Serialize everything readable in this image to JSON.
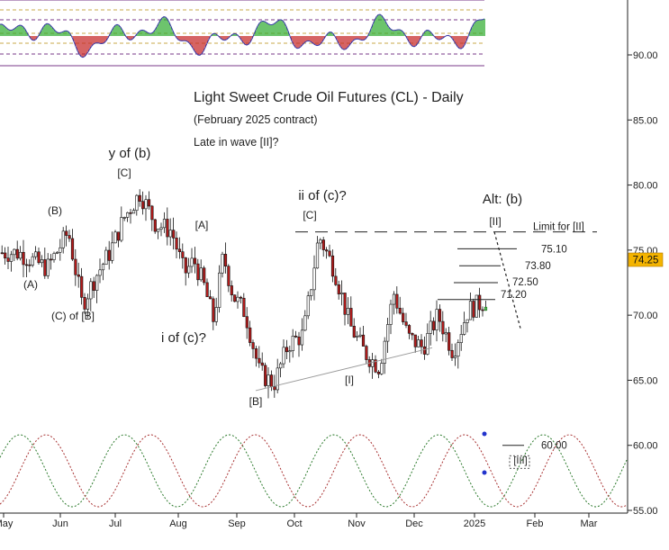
{
  "chart_data": {
    "type": "candlestick",
    "title": "Light Sweet Crude Oil Futures (CL) - Daily",
    "subtitle": "(February 2025 contract)",
    "note": "Late in wave [II]?",
    "ylim": [
      55,
      96
    ],
    "y_ticks": [
      "55.00",
      "60.00",
      "65.00",
      "70.00",
      "75.00",
      "80.00",
      "85.00",
      "90.00"
    ],
    "x_ticks": [
      "May",
      "Jun",
      "Jul",
      "Aug",
      "Sep",
      "Oct",
      "Nov",
      "Dec",
      "2025",
      "Feb",
      "Mar"
    ],
    "last_price": "74.25",
    "price_path": [
      [
        "May",
        74.8
      ],
      [
        "May",
        73.6
      ],
      [
        "Jun",
        76.4
      ],
      [
        "Jun",
        70.8
      ],
      [
        "Jun",
        73.0
      ],
      [
        "Jun",
        74.8
      ],
      [
        "Jul",
        77.5
      ],
      [
        "Jul",
        79.4
      ],
      [
        "Jul",
        77.0
      ],
      [
        "Jul",
        76.5
      ],
      [
        "Aug",
        73.2
      ],
      [
        "Aug",
        74.2
      ],
      [
        "Aug",
        72.3
      ],
      [
        "Aug",
        69.6
      ],
      [
        "Aug",
        74.6
      ],
      [
        "Aug",
        71.5
      ],
      [
        "Sep",
        70.2
      ],
      [
        "Sep",
        65.6
      ],
      [
        "Sep",
        64.7
      ],
      [
        "Sep",
        67.8
      ],
      [
        "Oct",
        68.5
      ],
      [
        "Oct",
        76.1
      ],
      [
        "Oct",
        73.5
      ],
      [
        "Oct",
        69.2
      ],
      [
        "Nov",
        67.1
      ],
      [
        "Nov",
        66.0
      ],
      [
        "Nov",
        71.7
      ],
      [
        "Nov",
        68.3
      ],
      [
        "Dec",
        67.5
      ],
      [
        "Dec",
        70.0
      ],
      [
        "Dec",
        67.2
      ],
      [
        "Dec",
        70.4
      ],
      [
        "2025",
        71.0
      ],
      [
        "2025",
        72.6
      ],
      [
        "2025",
        74.2
      ],
      [
        "2025",
        75.1
      ]
    ],
    "horizontal_levels": [
      {
        "label": "75.10",
        "value": 75.1
      },
      {
        "label": "73.80",
        "value": 73.8
      },
      {
        "label": "72.50",
        "value": 72.5
      },
      {
        "label": "71.20",
        "value": 71.2
      },
      {
        "label": "60.00",
        "value": 60.0
      }
    ],
    "limit_line": {
      "label": "Limit for [II]",
      "value": 76.4
    },
    "wave_labels": [
      {
        "text": "(A)",
        "x": "May",
        "y": 72.5
      },
      {
        "text": "(B)",
        "x": "Jun",
        "y": 77.0
      },
      {
        "text": "(C) of [B]",
        "x": "Jun",
        "y": 69.6
      },
      {
        "text": "y of (b)",
        "x": "Jul",
        "y": 81.8
      },
      {
        "text": "[C]",
        "x": "Jul",
        "y": 80.3
      },
      {
        "text": "[A]",
        "x": "Aug",
        "y": 76.4
      },
      {
        "text": "i of (c)?",
        "x": "Aug",
        "y": 68.2
      },
      {
        "text": "[B]",
        "x": "Sep",
        "y": 63.9
      },
      {
        "text": "ii of (c)?",
        "x": "Oct",
        "y": 79.0
      },
      {
        "text": "[C]",
        "x": "Oct",
        "y": 77.7
      },
      {
        "text": "[I]",
        "x": "Nov",
        "y": 64.9
      },
      {
        "text": "Alt: (b)",
        "x": "2025",
        "y": 79.0
      },
      {
        "text": "[II]",
        "x": "2025",
        "y": 77.1
      },
      {
        "text": "[III]",
        "x": "2025",
        "y": 58.6
      }
    ],
    "oscillator": {
      "type": "histogram",
      "colors": {
        "positive": "#2eaa2e",
        "negative": "#c42222",
        "line": "#3a3aaa"
      }
    },
    "cycle_lines": {
      "colors": [
        "#2c7a2c",
        "#a83232"
      ]
    }
  }
}
